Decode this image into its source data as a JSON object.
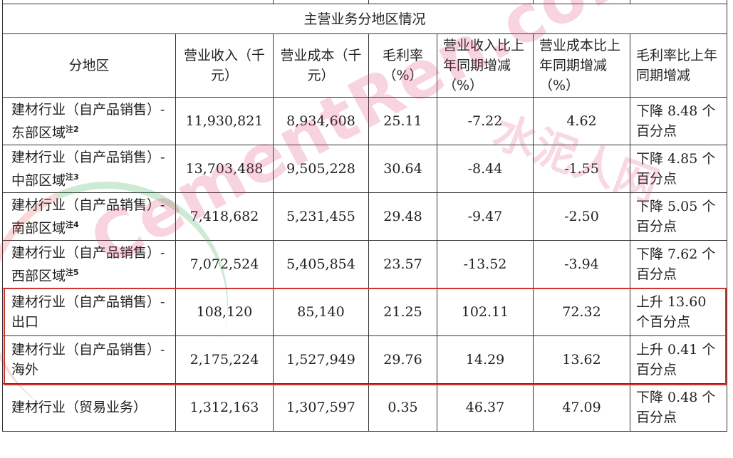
{
  "table": {
    "section_title": "主营业务分地区情况",
    "headers": [
      "分地区",
      "营业收入（千元）",
      "营业成本（千元）",
      "毛利率（%）",
      "营业收入比上年同期增减（%）",
      "营业成本比上年同期增减（%）",
      "毛利率比上年同期增减"
    ],
    "rows": [
      {
        "region": "建材行业（自产品销售）-东部区域",
        "note": "注2",
        "revenue": "11,930,821",
        "cost": "8,934,608",
        "margin": "25.11",
        "rev_change": "-7.22",
        "cost_change": "4.62",
        "margin_change": "下降 8.48 个百分点"
      },
      {
        "region": "建材行业（自产品销售）-中部区域",
        "note": "注3",
        "revenue": "13,703,488",
        "cost": "9,505,228",
        "margin": "30.64",
        "rev_change": "-8.44",
        "cost_change": "-1.55",
        "margin_change": "下降 4.85 个百分点"
      },
      {
        "region": "建材行业（自产品销售）-南部区域",
        "note": "注4",
        "revenue": "7,418,682",
        "cost": "5,231,455",
        "margin": "29.48",
        "rev_change": "-9.47",
        "cost_change": "-2.50",
        "margin_change": "下降 5.05 个百分点"
      },
      {
        "region": "建材行业（自产品销售）-西部区域",
        "note": "注5",
        "revenue": "7,072,524",
        "cost": "5,405,854",
        "margin": "23.57",
        "rev_change": "-13.52",
        "cost_change": "-3.94",
        "margin_change": "下降 7.62 个百分点"
      },
      {
        "region": "建材行业（自产品销售）-出口",
        "note": "",
        "revenue": "108,120",
        "cost": "85,140",
        "margin": "21.25",
        "rev_change": "102.11",
        "cost_change": "72.32",
        "margin_change": "上升 13.60 个百分点"
      },
      {
        "region": "建材行业（自产品销售）-海外",
        "note": "",
        "revenue": "2,175,224",
        "cost": "1,527,949",
        "margin": "29.76",
        "rev_change": "14.29",
        "cost_change": "13.62",
        "margin_change": "上升 0.41 个百分点"
      },
      {
        "region": "建材行业（贸易业务）",
        "note": "",
        "revenue": "1,312,163",
        "cost": "1,307,597",
        "margin": "0.35",
        "rev_change": "46.37",
        "cost_change": "47.09",
        "margin_change": "下降 0.48 个百分点"
      }
    ]
  },
  "highlight_color": "#d0342c",
  "watermark": {
    "latin": "CementRen.com",
    "chinese": "水泥人网"
  }
}
